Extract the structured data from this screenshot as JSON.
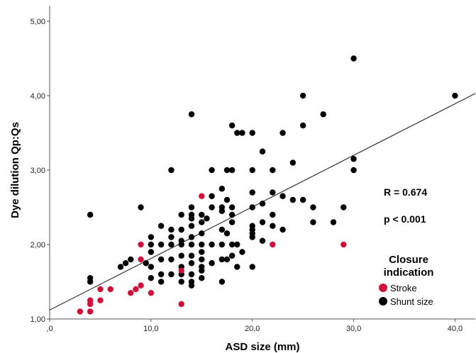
{
  "chart_data": {
    "type": "scatter",
    "title": "",
    "xlabel": "ASD size (mm)",
    "ylabel": "Dye dilution Qp:Qs",
    "xlim": [
      0,
      42
    ],
    "ylim": [
      1.0,
      5.0
    ],
    "x_ticks": [
      0,
      10,
      20,
      30,
      40
    ],
    "x_tick_labels": [
      ",0",
      "10,0",
      "20,0",
      "30,0",
      "40,0"
    ],
    "y_ticks": [
      1,
      2,
      3,
      4,
      5
    ],
    "y_tick_labels": [
      "1,00",
      "2,00",
      "3,00",
      "4,00",
      "5,00"
    ],
    "grid": false,
    "legend": {
      "title_line1": "Closure",
      "title_line2": "indication",
      "placement": "bottom-right"
    },
    "annotations": {
      "r": "R = 0.674",
      "p": "p < 0.001"
    },
    "fit_line": {
      "x0": 0,
      "y0": 1.12,
      "x1": 42,
      "y1": 4.03,
      "color": "#333333"
    },
    "series": [
      {
        "name": "Stroke",
        "color": "#d0103a",
        "points": [
          [
            3,
            1.1
          ],
          [
            4,
            1.1
          ],
          [
            4,
            1.2
          ],
          [
            4,
            1.25
          ],
          [
            5,
            1.25
          ],
          [
            5,
            1.4
          ],
          [
            6,
            1.4
          ],
          [
            8,
            1.35
          ],
          [
            8.5,
            1.4
          ],
          [
            9,
            1.45
          ],
          [
            9,
            1.8
          ],
          [
            9,
            2.0
          ],
          [
            10,
            1.35
          ],
          [
            13,
            1.2
          ],
          [
            13,
            1.65
          ],
          [
            15,
            2.65
          ],
          [
            22,
            2.0
          ],
          [
            29,
            2.0
          ]
        ]
      },
      {
        "name": "Shunt size",
        "color": "#000000",
        "points": [
          [
            4,
            2.4
          ],
          [
            4,
            1.5
          ],
          [
            4,
            1.55
          ],
          [
            7,
            1.7
          ],
          [
            7.5,
            1.75
          ],
          [
            8,
            1.8
          ],
          [
            9,
            2.5
          ],
          [
            9.5,
            1.75
          ],
          [
            10,
            1.55
          ],
          [
            10,
            1.7
          ],
          [
            10,
            1.9
          ],
          [
            10,
            2.0
          ],
          [
            10,
            2.1
          ],
          [
            11,
            1.5
          ],
          [
            11,
            1.6
          ],
          [
            11,
            1.8
          ],
          [
            11,
            2.0
          ],
          [
            11,
            2.25
          ],
          [
            12,
            1.6
          ],
          [
            12,
            1.8
          ],
          [
            12,
            2.0
          ],
          [
            12,
            2.1
          ],
          [
            12,
            2.2
          ],
          [
            12,
            3.0
          ],
          [
            13,
            1.5
          ],
          [
            13,
            1.6
          ],
          [
            13,
            1.7
          ],
          [
            13,
            1.85
          ],
          [
            13,
            2.0
          ],
          [
            13,
            2.05
          ],
          [
            13,
            2.2
          ],
          [
            13,
            2.4
          ],
          [
            14,
            1.45
          ],
          [
            14,
            1.5
          ],
          [
            14,
            1.6
          ],
          [
            14,
            1.75
          ],
          [
            14,
            1.85
          ],
          [
            14,
            2.0
          ],
          [
            14,
            2.1
          ],
          [
            14,
            2.25
          ],
          [
            14,
            2.35
          ],
          [
            14,
            2.4
          ],
          [
            14,
            2.5
          ],
          [
            14,
            3.75
          ],
          [
            15,
            1.55
          ],
          [
            15,
            1.65
          ],
          [
            15,
            1.7
          ],
          [
            15,
            1.8
          ],
          [
            15,
            1.9
          ],
          [
            15,
            2.0
          ],
          [
            15,
            2.15
          ],
          [
            15,
            2.3
          ],
          [
            15,
            2.4
          ],
          [
            15.5,
            2.35
          ],
          [
            16,
            1.75
          ],
          [
            16,
            2.0
          ],
          [
            16,
            2.5
          ],
          [
            16,
            2.65
          ],
          [
            16,
            3.0
          ],
          [
            17,
            1.5
          ],
          [
            17,
            1.8
          ],
          [
            17,
            2.0
          ],
          [
            17,
            2.2
          ],
          [
            17,
            2.45
          ],
          [
            17,
            2.5
          ],
          [
            17,
            2.75
          ],
          [
            17.5,
            1.8
          ],
          [
            17.5,
            2.15
          ],
          [
            17.5,
            2.6
          ],
          [
            17.5,
            3.0
          ],
          [
            18,
            1.85
          ],
          [
            18,
            2.0
          ],
          [
            18,
            2.3
          ],
          [
            18,
            2.4
          ],
          [
            18,
            2.5
          ],
          [
            18,
            3.0
          ],
          [
            18,
            3.6
          ],
          [
            18.5,
            1.7
          ],
          [
            18.5,
            2.0
          ],
          [
            18.5,
            3.5
          ],
          [
            19,
            1.9
          ],
          [
            19,
            3.5
          ],
          [
            20,
            1.7
          ],
          [
            20,
            2.1
          ],
          [
            20,
            2.15
          ],
          [
            20,
            2.2
          ],
          [
            20,
            2.25
          ],
          [
            20,
            2.5
          ],
          [
            20,
            2.7
          ],
          [
            20,
            3.0
          ],
          [
            20,
            3.5
          ],
          [
            21,
            2.05
          ],
          [
            21,
            2.3
          ],
          [
            21,
            2.55
          ],
          [
            21,
            3.25
          ],
          [
            22,
            2.25
          ],
          [
            22,
            2.4
          ],
          [
            22,
            2.7
          ],
          [
            22,
            3.0
          ],
          [
            23,
            2.2
          ],
          [
            23,
            2.65
          ],
          [
            23,
            3.5
          ],
          [
            24,
            2.6
          ],
          [
            24,
            3.1
          ],
          [
            25,
            2.6
          ],
          [
            25,
            3.6
          ],
          [
            25,
            4.0
          ],
          [
            26,
            2.3
          ],
          [
            26,
            2.5
          ],
          [
            27,
            3.75
          ],
          [
            28,
            2.3
          ],
          [
            29,
            2.5
          ],
          [
            30,
            3.0
          ],
          [
            30,
            3.15
          ],
          [
            30,
            4.5
          ],
          [
            40,
            4.0
          ]
        ]
      }
    ]
  }
}
